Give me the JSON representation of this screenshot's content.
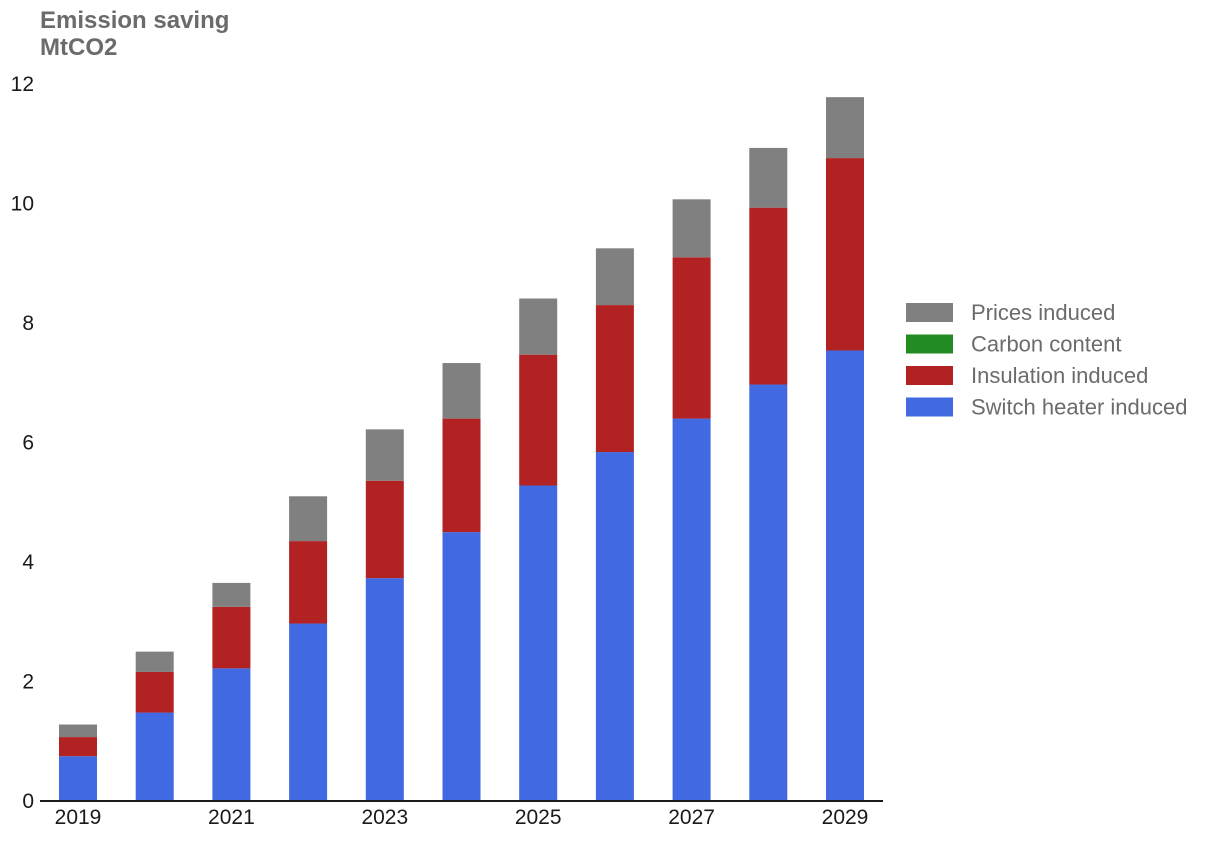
{
  "chart_data": {
    "type": "bar",
    "stacked": true,
    "title": "Emission saving",
    "subtitle": "MtCO2",
    "xlabel": "",
    "ylabel": "",
    "ylim": [
      0,
      12
    ],
    "y_ticks": [
      0,
      2,
      4,
      6,
      8,
      10,
      12
    ],
    "categories": [
      "2019",
      "2020",
      "2021",
      "2022",
      "2023",
      "2024",
      "2025",
      "2026",
      "2027",
      "2028",
      "2029"
    ],
    "x_tick_labels": [
      "2019",
      "2021",
      "2023",
      "2025",
      "2027",
      "2029"
    ],
    "grid": false,
    "legend_position": "right",
    "series": [
      {
        "name": "Switch heater induced",
        "color": "#4169e1",
        "values": [
          0.75,
          1.48,
          2.22,
          2.97,
          3.73,
          4.5,
          5.28,
          5.84,
          6.4,
          6.97,
          7.54
        ]
      },
      {
        "name": "Insulation induced",
        "color": "#b22222",
        "values": [
          0.32,
          0.68,
          1.03,
          1.38,
          1.63,
          1.9,
          2.19,
          2.46,
          2.7,
          2.96,
          3.22
        ]
      },
      {
        "name": "Carbon content",
        "color": "#228b22",
        "values": [
          0,
          0,
          0,
          0,
          0,
          0,
          0,
          0,
          0,
          0,
          0
        ]
      },
      {
        "name": "Prices induced",
        "color": "#808080",
        "values": [
          0.21,
          0.34,
          0.4,
          0.75,
          0.86,
          0.93,
          0.94,
          0.95,
          0.97,
          1.0,
          1.02
        ]
      }
    ],
    "legend_order": [
      "Prices induced",
      "Carbon content",
      "Insulation induced",
      "Switch heater induced"
    ]
  }
}
